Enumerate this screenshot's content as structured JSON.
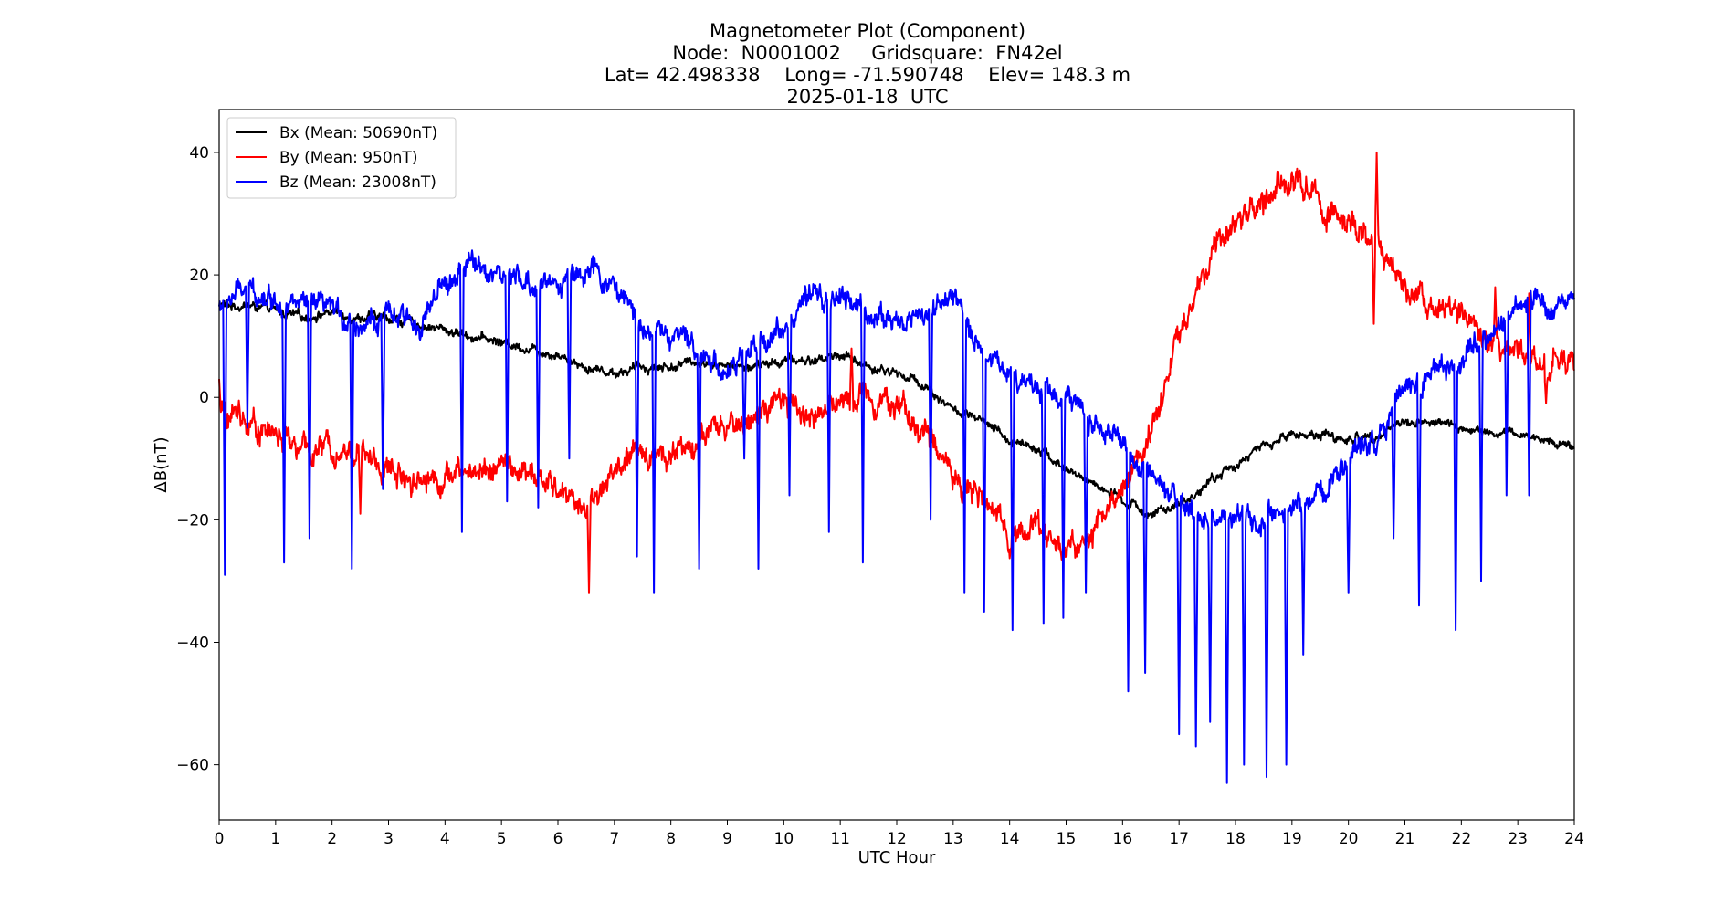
{
  "chart_data": {
    "type": "line",
    "title_lines": [
      "Magnetometer Plot (Component)",
      "Node:  N0001002     Gridsquare:  FN42el",
      "Lat= 42.498338    Long= -71.590748    Elev= 148.3 m",
      "2025-01-18  UTC"
    ],
    "xlabel": "UTC Hour",
    "ylabel": "ΔB(nT)",
    "xlim": [
      0,
      24
    ],
    "ylim": [
      -69,
      47
    ],
    "xticks": [
      0,
      1,
      2,
      3,
      4,
      5,
      6,
      7,
      8,
      9,
      10,
      11,
      12,
      13,
      14,
      15,
      16,
      17,
      18,
      19,
      20,
      21,
      22,
      23,
      24
    ],
    "yticks": [
      40,
      20,
      0,
      -20,
      -40,
      -60
    ],
    "ytick_labels": [
      "40",
      "20",
      "0",
      "−20",
      "−40",
      "−60"
    ],
    "grid": false,
    "legend_position": "top-left",
    "series": [
      {
        "name": "Bx (Mean: 50690nT)",
        "color": "#000000",
        "noise": 0.8,
        "dips": [],
        "x": [
          0,
          0.5,
          1,
          1.5,
          2,
          2.5,
          3,
          3.5,
          4,
          4.5,
          5,
          5.5,
          6,
          6.5,
          7,
          7.5,
          8,
          8.5,
          9,
          9.5,
          10,
          10.5,
          11,
          11.5,
          12,
          12.5,
          13,
          13.5,
          14,
          14.5,
          15,
          15.5,
          16,
          16.5,
          17,
          17.5,
          18,
          18.5,
          19,
          19.5,
          20,
          20.5,
          21,
          21.5,
          22,
          22.5,
          23,
          23.5,
          24
        ],
        "y": [
          15,
          15,
          14,
          13,
          14,
          13,
          13,
          12,
          11,
          10,
          9,
          8,
          7,
          5,
          4,
          5,
          5,
          6,
          5,
          5,
          6,
          6,
          7,
          5,
          4,
          2,
          -2,
          -4,
          -7,
          -8,
          -12,
          -14,
          -17,
          -19,
          -18,
          -14,
          -11,
          -8,
          -6,
          -6,
          -7,
          -6,
          -4,
          -4,
          -5,
          -6,
          -6,
          -7,
          -8
        ]
      },
      {
        "name": "By (Mean: 950nT)",
        "color": "#ff0000",
        "noise": 2.2,
        "dips": [
          [
            0,
            3
          ],
          [
            0.35,
            -0.5
          ],
          [
            2.5,
            -19
          ],
          [
            6.55,
            -32
          ],
          [
            11.2,
            8
          ],
          [
            20.5,
            40
          ],
          [
            20.45,
            12
          ],
          [
            22.6,
            18
          ],
          [
            23.2,
            17
          ],
          [
            23.5,
            -1
          ]
        ],
        "x": [
          0,
          0.5,
          1,
          1.5,
          2,
          2.5,
          3,
          3.5,
          4,
          4.5,
          5,
          5.5,
          6,
          6.5,
          7,
          7.5,
          8,
          8.5,
          9,
          9.5,
          10,
          10.5,
          11,
          11.5,
          12,
          12.5,
          13,
          13.5,
          14,
          14.5,
          15,
          15.5,
          16,
          16.5,
          17,
          17.5,
          18,
          18.5,
          19,
          19.5,
          20,
          20.5,
          21,
          21.5,
          22,
          22.5,
          23,
          23.5,
          24
        ],
        "y": [
          -2,
          -4,
          -6,
          -9,
          -8,
          -9,
          -12,
          -13,
          -13,
          -12,
          -11,
          -13,
          -15,
          -18,
          -12,
          -9,
          -9,
          -7,
          -5,
          -3,
          -1,
          -3,
          -1,
          1,
          -1,
          -6,
          -12,
          -17,
          -22,
          -21,
          -25,
          -22,
          -15,
          -5,
          10,
          21,
          29,
          32,
          36,
          32,
          28,
          24,
          18,
          16,
          13,
          8,
          7,
          6,
          5
        ]
      },
      {
        "name": "Bz (Mean: 23008nT)",
        "color": "#0000ff",
        "noise": 2.0,
        "dips": [
          [
            0.1,
            -29
          ],
          [
            0.5,
            -5
          ],
          [
            1.15,
            -27
          ],
          [
            1.6,
            -23
          ],
          [
            2.35,
            -28
          ],
          [
            2.9,
            -15
          ],
          [
            4.3,
            -22
          ],
          [
            5.1,
            -17
          ],
          [
            5.65,
            -18
          ],
          [
            6.2,
            -10
          ],
          [
            7.4,
            -26
          ],
          [
            7.7,
            -32
          ],
          [
            8.5,
            -28
          ],
          [
            9.3,
            -10
          ],
          [
            9.55,
            -28
          ],
          [
            10.1,
            -16
          ],
          [
            10.8,
            -22
          ],
          [
            11.4,
            -27
          ],
          [
            12.6,
            -20
          ],
          [
            13.2,
            -32
          ],
          [
            13.55,
            -35
          ],
          [
            14.05,
            -38
          ],
          [
            14.6,
            -37
          ],
          [
            14.95,
            -36
          ],
          [
            15.35,
            -32
          ],
          [
            16.1,
            -48
          ],
          [
            16.4,
            -45
          ],
          [
            17.0,
            -55
          ],
          [
            17.3,
            -57
          ],
          [
            17.55,
            -53
          ],
          [
            17.85,
            -63
          ],
          [
            18.15,
            -60
          ],
          [
            18.55,
            -62
          ],
          [
            18.9,
            -60
          ],
          [
            19.2,
            -42
          ],
          [
            20.0,
            -32
          ],
          [
            20.8,
            -23
          ],
          [
            21.25,
            -34
          ],
          [
            21.9,
            -38
          ],
          [
            22.35,
            -30
          ],
          [
            22.8,
            -16
          ],
          [
            23.2,
            -16
          ]
        ],
        "x": [
          0,
          0.5,
          1,
          1.5,
          2,
          2.5,
          3,
          3.5,
          4,
          4.5,
          5,
          5.5,
          6,
          6.5,
          7,
          7.5,
          8,
          8.5,
          9,
          9.5,
          10,
          10.5,
          11,
          11.5,
          12,
          12.5,
          13,
          13.5,
          14,
          14.5,
          15,
          15.5,
          16,
          16.5,
          17,
          17.5,
          18,
          18.5,
          19,
          19.5,
          20,
          20.5,
          21,
          21.5,
          22,
          22.5,
          23,
          23.5,
          24
        ],
        "y": [
          15,
          18,
          16,
          15,
          14,
          12,
          13,
          12,
          18,
          22,
          20,
          18,
          19,
          21,
          18,
          12,
          10,
          8,
          4,
          8,
          12,
          16,
          16,
          14,
          12,
          14,
          16,
          8,
          4,
          2,
          0,
          -4,
          -8,
          -14,
          -18,
          -20,
          -20,
          -21,
          -18,
          -16,
          -10,
          -6,
          2,
          4,
          6,
          10,
          14,
          16,
          16
        ]
      }
    ]
  }
}
